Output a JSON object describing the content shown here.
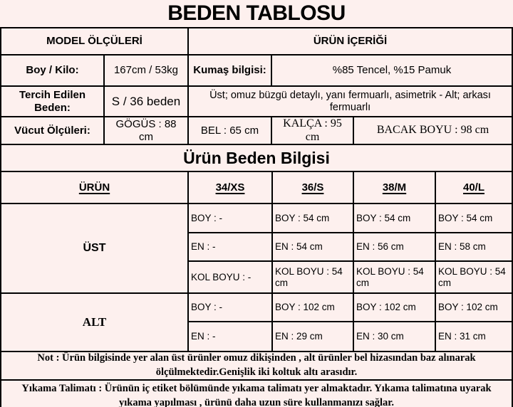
{
  "title": "BEDEN TABLOSU",
  "colors": {
    "background": "#fdf0ee",
    "border": "#000000",
    "text": "#000000"
  },
  "model_section": {
    "header_left": "MODEL ÖLÇÜLERİ",
    "header_right": "ÜRÜN İÇERİĞİ",
    "boy_kilo_label": "Boy / Kilo:",
    "boy_kilo_value": "167cm / 53kg",
    "kumas_label": "Kumaş bilgisi:",
    "kumas_value": "%85 Tencel, %15 Pamuk",
    "tercih_label": "Tercih Edilen Beden:",
    "tercih_value": "S / 36 beden",
    "urun_description": "Üst; omuz büzgü detaylı, yanı fermuarlı, asimetrik - Alt; arkası fermuarlı",
    "vucut_label": "Vücut Ölçüleri:",
    "gogus": "GÖGÜS : 88 cm",
    "bel": "BEL : 65 cm",
    "kalca": "KALÇA : 95 cm",
    "bacak": "BACAK BOYU : 98 cm"
  },
  "size_section": {
    "title": "Ürün Beden Bilgisi",
    "columns": [
      "ÜRÜN",
      "34/XS",
      "36/S",
      "38/M",
      "40/L"
    ],
    "groups": [
      {
        "name": "ÜST",
        "rows": [
          [
            "BOY : -",
            "BOY : 54 cm",
            "BOY : 54 cm",
            "BOY : 54 cm"
          ],
          [
            "EN : -",
            "EN : 54 cm",
            "EN : 56 cm",
            "EN : 58 cm"
          ],
          [
            "KOL BOYU : -",
            "KOL BOYU : 54 cm",
            "KOL BOYU : 54 cm",
            "KOL BOYU : 54 cm"
          ]
        ]
      },
      {
        "name": "ALT",
        "rows": [
          [
            "BOY : -",
            "BOY : 102 cm",
            "BOY : 102 cm",
            "BOY : 102 cm"
          ],
          [
            "EN : -",
            "EN : 29 cm",
            "EN : 30 cm",
            "EN : 31 cm"
          ]
        ]
      }
    ]
  },
  "notes": {
    "note": "Not : Ürün bilgisinde yer alan üst ürünler omuz dikişinden , alt ürünler bel hizasından baz alınarak ölçülmektedir.Genişlik iki koltuk altı arasıdır.",
    "washing": "Yıkama Talimatı : Ürünün iç etiket bölümünde yıkama talimatı yer almaktadır. Yıkama talimatına uyarak yıkama yapılması , ürünü daha uzun süre kullanmanızı sağlar."
  }
}
